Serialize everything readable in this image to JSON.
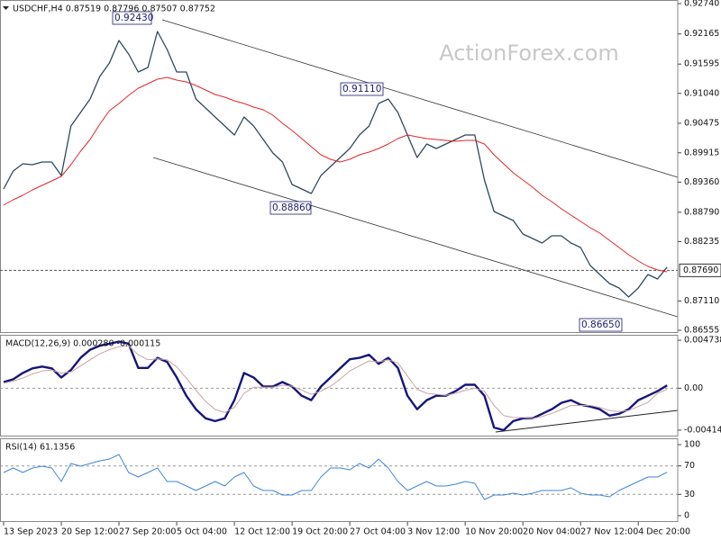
{
  "chart_data": [
    {
      "type": "line",
      "title": "USDCHF,H4  0.87519 0.87796 0.87507 0.87752",
      "watermark": "ActionForex.com",
      "categories": [
        "13 Sep 2023",
        null,
        null,
        null,
        null,
        null,
        "20 Sep 12:00",
        null,
        null,
        null,
        null,
        null,
        "27 Sep 20:00",
        null,
        null,
        null,
        null,
        null,
        "5 Oct 04:00",
        null,
        null,
        null,
        null,
        null,
        "12 Oct 12:00",
        null,
        null,
        null,
        null,
        null,
        "19 Oct 20:00",
        null,
        null,
        null,
        null,
        null,
        "27 Oct 04:00",
        null,
        null,
        null,
        null,
        null,
        "3 Nov 12:00",
        null,
        null,
        null,
        null,
        null,
        "10 Nov 20:00",
        null,
        null,
        null,
        null,
        null,
        "20 Nov 04:00",
        null,
        null,
        null,
        null,
        null,
        "27 Nov 12:00",
        null,
        null,
        null,
        null,
        null,
        "4 Dec 20:00",
        null,
        null,
        null
      ],
      "series": [
        {
          "color": "#2f4a5a",
          "values": [
            0.8923,
            0.89571,
            0.89707,
            0.8969,
            0.89741,
            0.89741,
            0.89485,
            0.90423,
            0.90678,
            0.90934,
            0.9136,
            0.91615,
            0.92041,
            0.91786,
            0.91445,
            0.9153,
            0.92212,
            0.91871,
            0.91445,
            0.91445,
            0.90934,
            0.90763,
            0.90593,
            0.90423,
            0.90252,
            0.90593,
            0.90423,
            0.90167,
            0.89911,
            0.89741,
            0.89315,
            0.8923,
            0.89145,
            0.89485,
            0.89656,
            0.89826,
            0.89997,
            0.90252,
            0.90423,
            0.90849,
            0.90934,
            0.90678,
            0.90252,
            0.89826,
            0.90082,
            0.89997,
            0.90082,
            0.90167,
            0.90252,
            0.90252,
            0.894,
            0.88804,
            0.88719,
            0.88634,
            0.88378,
            0.88293,
            0.88208,
            0.88344,
            0.88344,
            0.88208,
            0.88122,
            0.87782,
            0.87611,
            0.87441,
            0.87356,
            0.87185,
            0.87356,
            0.87611,
            0.87526,
            0.87752
          ]
        },
        {
          "color": "#e3262b",
          "values": [
            0.88923,
            0.89025,
            0.89111,
            0.89213,
            0.89298,
            0.89383,
            0.89468,
            0.8969,
            0.89945,
            0.90167,
            0.90457,
            0.90712,
            0.90849,
            0.91002,
            0.91138,
            0.91223,
            0.91309,
            0.91343,
            0.91292,
            0.91257,
            0.91189,
            0.91104,
            0.91019,
            0.90968,
            0.909,
            0.90849,
            0.9078,
            0.90729,
            0.90627,
            0.90474,
            0.90337,
            0.90184,
            0.90031,
            0.89877,
            0.89792,
            0.89741,
            0.89792,
            0.89877,
            0.89928,
            0.89997,
            0.90082,
            0.90184,
            0.90252,
            0.90218,
            0.90184,
            0.90167,
            0.9015,
            0.90133,
            0.9015,
            0.9015,
            0.90082,
            0.89877,
            0.89707,
            0.89537,
            0.894,
            0.89264,
            0.89111,
            0.88991,
            0.88855,
            0.88736,
            0.88616,
            0.88497,
            0.88395,
            0.88259,
            0.88122,
            0.87986,
            0.87867,
            0.87764,
            0.87696,
            0.87662
          ]
        }
      ],
      "ylim": [
        0.86504,
        0.92808
      ],
      "yticks": [
        {
          "value": 0.9274,
          "label": "0.92740"
        },
        {
          "value": 0.92165,
          "label": "0.92165"
        },
        {
          "value": 0.91595,
          "label": "0.91595"
        },
        {
          "value": 0.9104,
          "label": "0.91040"
        },
        {
          "value": 0.90475,
          "label": "0.90475"
        },
        {
          "value": 0.89915,
          "label": "0.89915"
        },
        {
          "value": 0.8936,
          "label": "0.89360"
        },
        {
          "value": 0.8879,
          "label": "0.88790"
        },
        {
          "value": 0.88235,
          "label": "0.88235"
        },
        {
          "value": 0.8711,
          "label": "0.87110"
        },
        {
          "value": 0.86555,
          "label": "0.86555"
        }
      ],
      "last": {
        "value": 0.8769,
        "label": "0.87690"
      },
      "annotations": [
        "0.92430",
        "0.91110",
        "0.88860",
        "0.86650"
      ],
      "grid": false
    },
    {
      "type": "line",
      "title": "MACD(12,26,9) 0.000280 -0.000115",
      "series": [
        {
          "color": "#16167a",
          "values": [
            0.00061,
            0.00088,
            0.00151,
            0.00196,
            0.00214,
            0.00196,
            0.00106,
            0.0018,
            0.003,
            0.0038,
            0.0042,
            0.0044,
            0.0046,
            0.0044,
            0.002,
            0.002,
            0.003,
            0.0026,
            0.00106,
            -0.00074,
            -0.00208,
            -0.00298,
            -0.00325,
            -0.00298,
            -0.00118,
            0.00151,
            0.00106,
            0.00016,
            0.00016,
            0.00061,
            0.00016,
            -0.00074,
            -0.00118,
            0.00016,
            0.00106,
            0.00196,
            0.00286,
            0.003,
            0.0033,
            0.0024,
            0.003,
            0.002,
            -0.00074,
            -0.00208,
            -0.00118,
            -0.00074,
            -0.00074,
            -0.00029,
            0.00034,
            0.00034,
            -0.00074,
            -0.00388,
            -0.00415,
            -0.00325,
            -0.00298,
            -0.00298,
            -0.00253,
            -0.00208,
            -0.00145,
            -0.00118,
            -0.00163,
            -0.00181,
            -0.00208,
            -0.00271,
            -0.00253,
            -0.00208,
            -0.00118,
            -0.00074,
            -0.00029,
            0.00028
          ]
        },
        {
          "color": "#c9a3a3",
          "values": [
            0.0005,
            0.0007,
            0.001,
            0.0014,
            0.0017,
            0.0018,
            0.0015,
            0.0016,
            0.0022,
            0.0028,
            0.0034,
            0.0038,
            0.0041,
            0.0042,
            0.0033,
            0.0028,
            0.0029,
            0.0028,
            0.0021,
            0.001,
            -0.0002,
            -0.0013,
            -0.0021,
            -0.0024,
            -0.0019,
            -0.0005,
            0.0001,
            0.0001,
            0.0001,
            0.0003,
            0.0002,
            -0.0002,
            -0.0006,
            -0.0003,
            0.0002,
            0.0009,
            0.0017,
            0.0022,
            0.0027,
            0.0026,
            0.0028,
            0.0025,
            0.0012,
            -0.0001,
            -0.0005,
            -0.0006,
            -0.0007,
            -0.0005,
            -0.0002,
            0,
            -0.0003,
            -0.0017,
            -0.0027,
            -0.0029,
            -0.0029,
            -0.003,
            -0.0028,
            -0.0025,
            -0.0021,
            -0.0017,
            -0.0017,
            -0.0017,
            -0.0019,
            -0.0022,
            -0.0023,
            -0.0022,
            -0.0018,
            -0.0014,
            -0.0005,
            -0.000115
          ]
        }
      ],
      "ylim": [
        -0.004772,
        0.005276
      ],
      "yticks": [
        0.004738,
        {
          "value": 0,
          "label": "0.00"
        },
        -0.004144
      ],
      "grid": "inner"
    },
    {
      "type": "line",
      "title": "RSI(14) 61.1356",
      "series": [
        {
          "color": "#3f86d6",
          "values": [
            60.8,
            67.1,
            60.8,
            67.1,
            69.6,
            67.1,
            48.1,
            73.4,
            69.6,
            73.4,
            77.2,
            79.7,
            86.1,
            60.8,
            54.4,
            60.8,
            67.1,
            48.1,
            48.1,
            41.8,
            35.4,
            41.8,
            48.1,
            41.8,
            54.4,
            60.8,
            41.8,
            35.4,
            35.4,
            29.1,
            29.1,
            35.4,
            35.4,
            54.4,
            67.1,
            67.1,
            64.6,
            73.4,
            67.1,
            79.7,
            67.1,
            48.1,
            35.4,
            41.8,
            48.1,
            41.8,
            41.8,
            44.3,
            48.1,
            45.6,
            22.8,
            29.1,
            29.1,
            31.6,
            29.1,
            31.6,
            35.4,
            35.4,
            35.4,
            39.2,
            31.6,
            29.1,
            29.1,
            26.6,
            35.4,
            41.8,
            48.1,
            54.4,
            54.4,
            61.1356
          ]
        }
      ],
      "ylim": [
        -8.9,
        108.9
      ],
      "yticks": [
        100,
        70,
        30,
        0
      ],
      "grid": "inner"
    }
  ]
}
